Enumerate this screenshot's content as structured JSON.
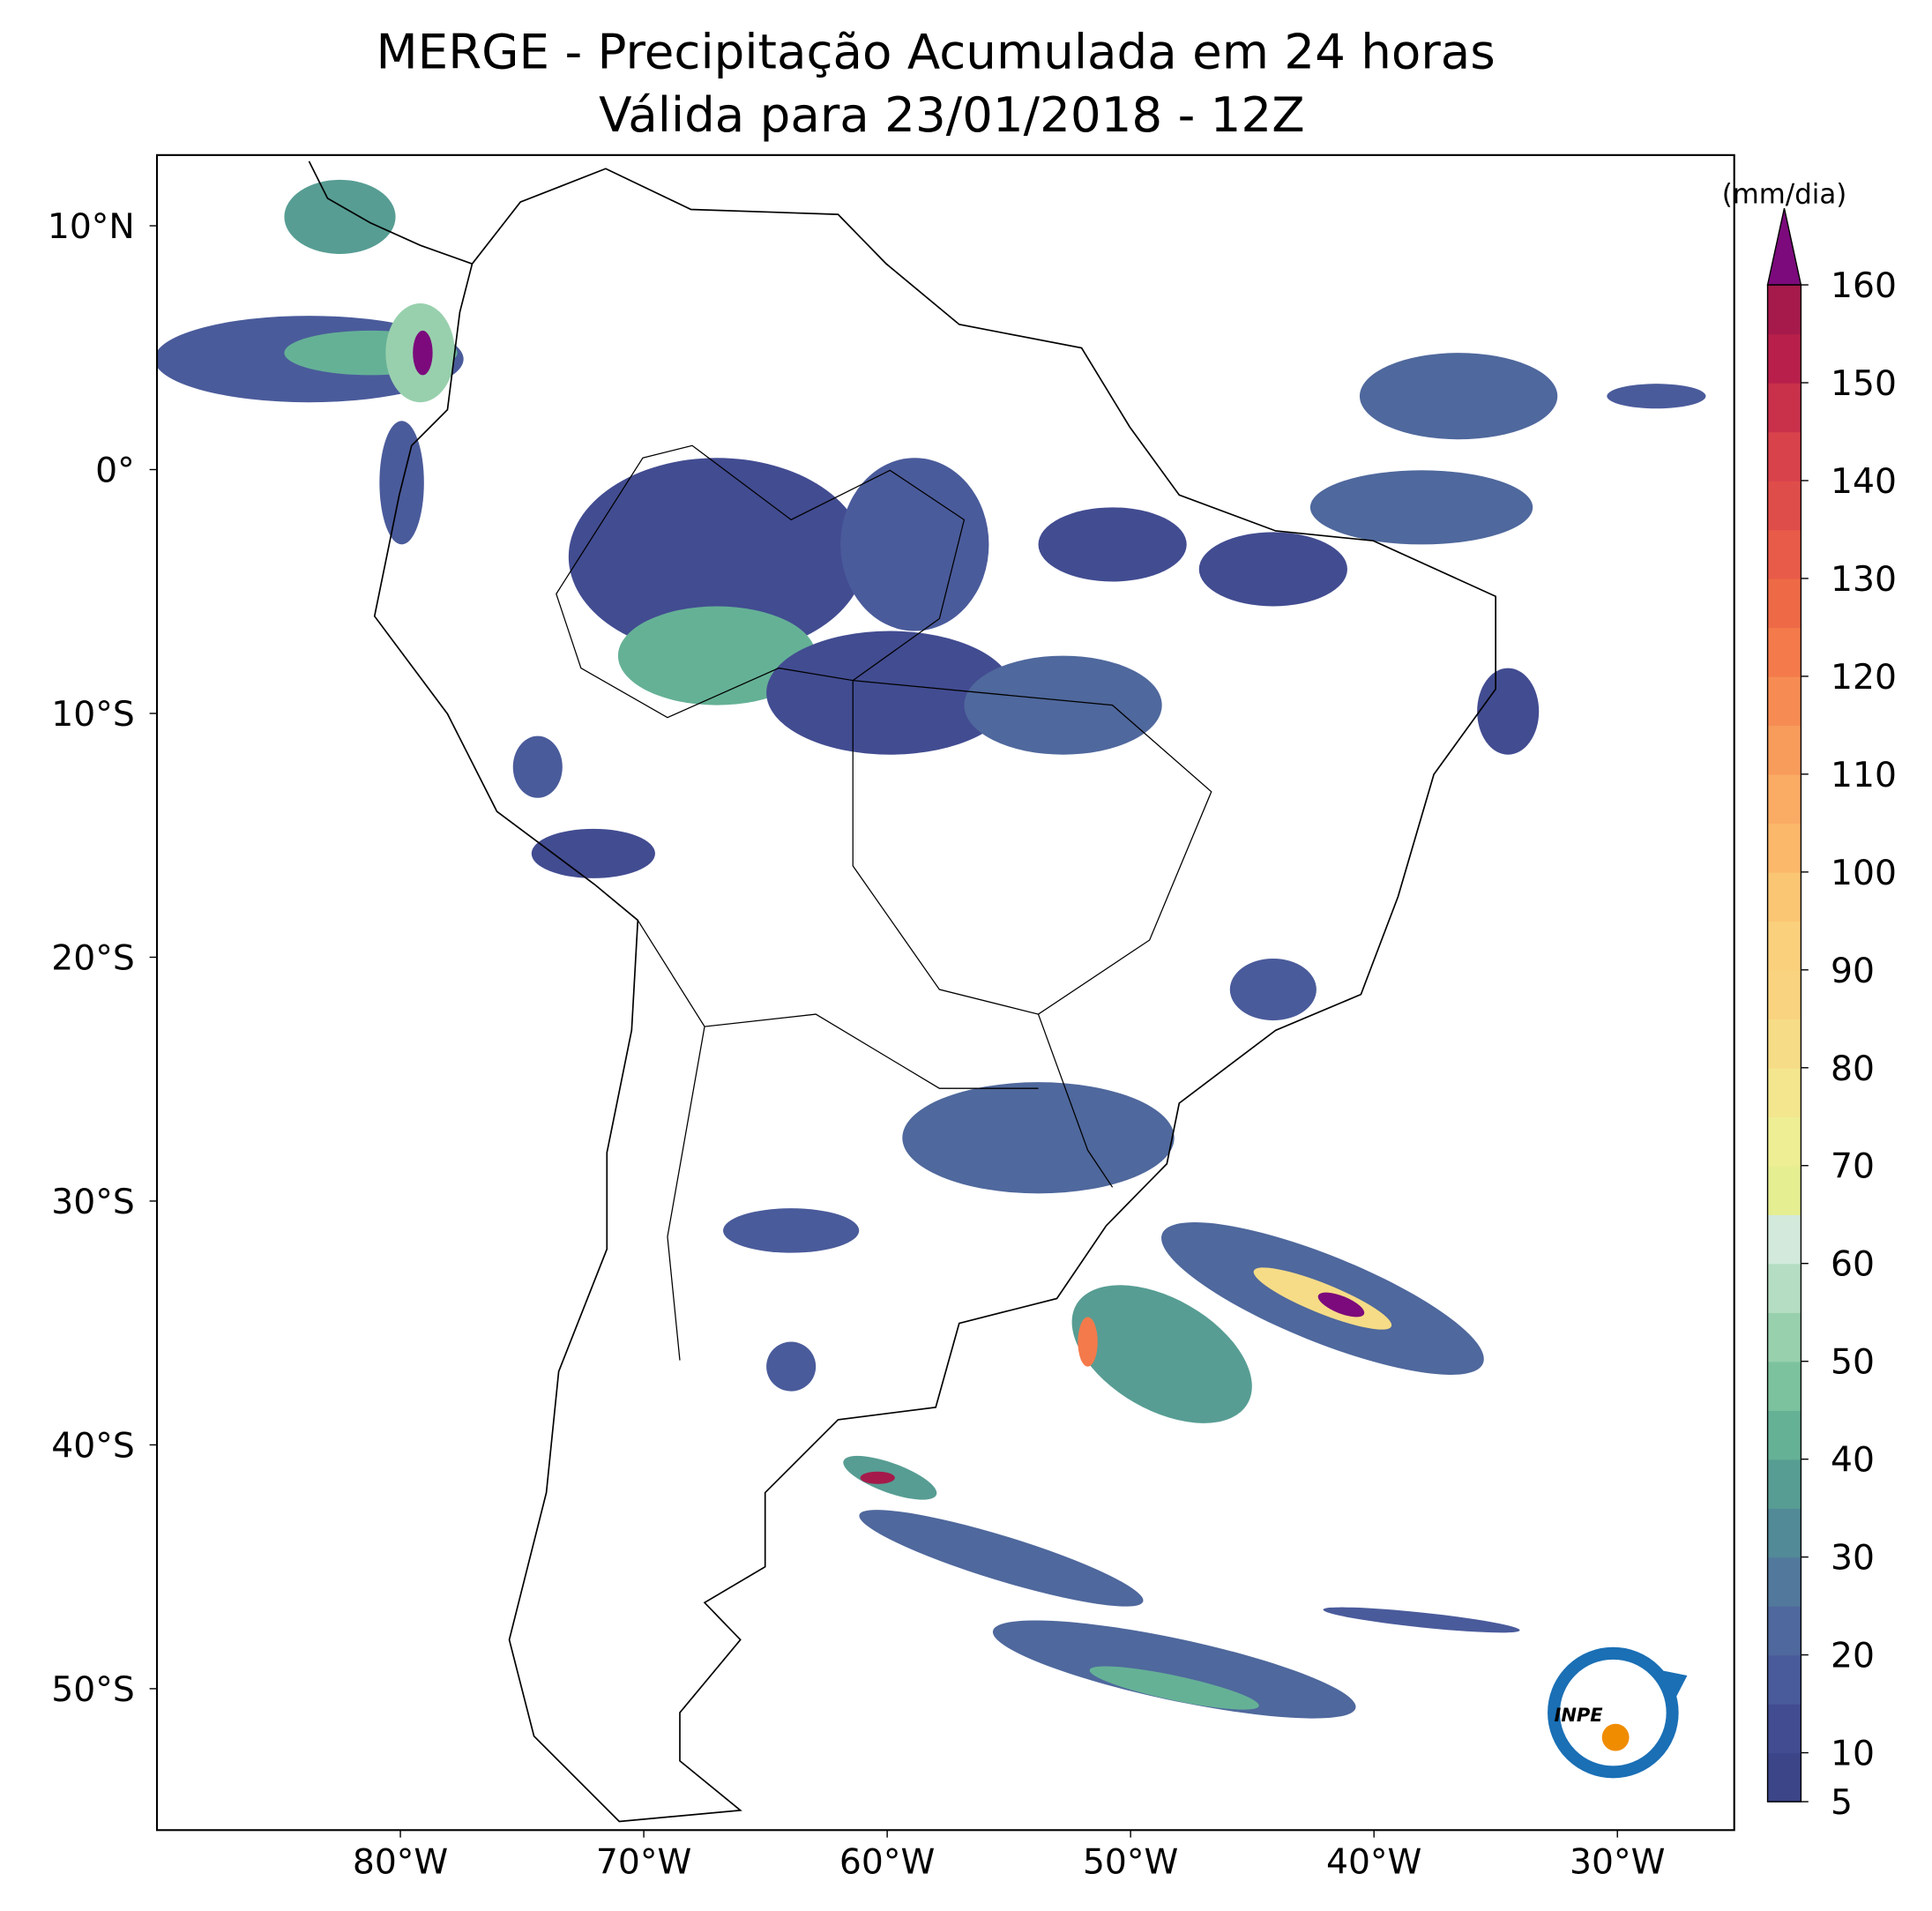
{
  "map": {
    "title": "MERGE - Precipitação Acumulada em 24 horas",
    "subtitle": "Válida para 23/01/2018 - 12Z",
    "lonlim": [
      -90,
      -25.2
    ],
    "latlim": [
      12.9,
      -55.8
    ],
    "lon_ticks": [
      {
        "value": -80,
        "label": "80°W"
      },
      {
        "value": -70,
        "label": "70°W"
      },
      {
        "value": -60,
        "label": "60°W"
      },
      {
        "value": -50,
        "label": "50°W"
      },
      {
        "value": -40,
        "label": "40°W"
      },
      {
        "value": -30,
        "label": "30°W"
      }
    ],
    "lat_ticks": [
      {
        "value": 10,
        "label": "10°N"
      },
      {
        "value": 0,
        "label": "0°"
      },
      {
        "value": -10,
        "label": "10°S"
      },
      {
        "value": -20,
        "label": "20°S"
      },
      {
        "value": -30,
        "label": "30°S"
      },
      {
        "value": -40,
        "label": "40°S"
      },
      {
        "value": -50,
        "label": "50°S"
      }
    ],
    "colorbar": {
      "unit": "(mm/dia)",
      "lim": [
        5,
        160
      ],
      "ticks": [
        5,
        10,
        20,
        30,
        40,
        50,
        60,
        70,
        80,
        90,
        100,
        110,
        120,
        130,
        140,
        150,
        160
      ],
      "levels": [
        5,
        10,
        15,
        20,
        25,
        30,
        35,
        40,
        45,
        50,
        55,
        60,
        65,
        70,
        75,
        80,
        85,
        90,
        95,
        100,
        105,
        110,
        115,
        120,
        125,
        130,
        135,
        140,
        145,
        150,
        155,
        160
      ],
      "colors": [
        "#3b4587",
        "#424c91",
        "#4a5b9b",
        "#4f689d",
        "#52789b",
        "#528a97",
        "#579d93",
        "#65b196",
        "#7cc29f",
        "#98d0ad",
        "#b5ddc3",
        "#d2e9dc",
        "#e5ee91",
        "#eeee94",
        "#f3e68e",
        "#f6dc86",
        "#f9d37f",
        "#fbd07d",
        "#fbc674",
        "#fbb86b",
        "#faab64",
        "#f89c5c",
        "#f68c54",
        "#f47a4b",
        "#ee6a47",
        "#e85b48",
        "#df4d4a",
        "#d8424b",
        "#c9314b",
        "#b8204b",
        "#a51a4a"
      ],
      "extend_color": "#7c0a7c"
    },
    "logo_text": "INPE"
  }
}
